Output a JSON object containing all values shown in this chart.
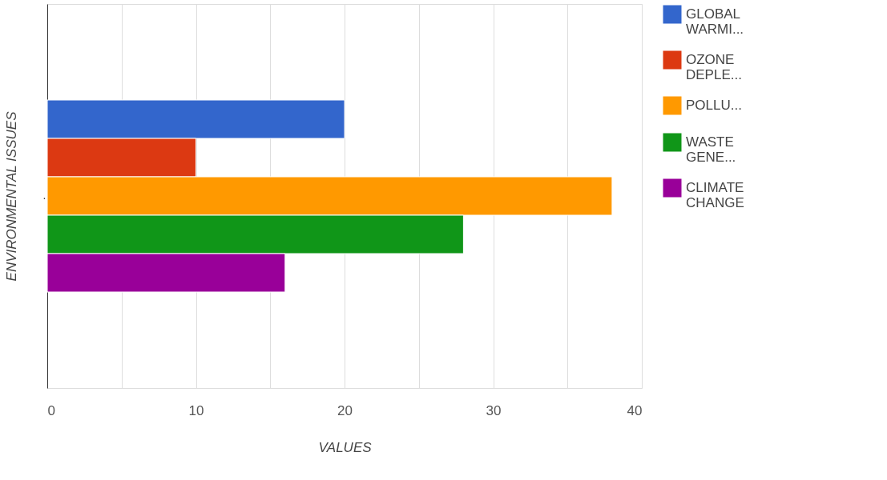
{
  "chart_data": {
    "type": "bar",
    "orientation": "horizontal",
    "categories": [
      "."
    ],
    "series": [
      {
        "name": "GLOBAL WARMI...",
        "color": "#3366cc",
        "values": [
          20
        ]
      },
      {
        "name": "OZONE DEPLE...",
        "color": "#dc3912",
        "values": [
          10
        ]
      },
      {
        "name": "POLLU...",
        "color": "#ff9900",
        "values": [
          38
        ]
      },
      {
        "name": "WASTE GENE...",
        "color": "#109618",
        "values": [
          28
        ]
      },
      {
        "name": "CLIMATE CHANGE",
        "color": "#990099",
        "values": [
          16
        ]
      }
    ],
    "xlabel": "VALUES",
    "ylabel": "ENVIRONMENTAL ISSUES",
    "xlim": [
      0,
      40
    ],
    "xticks": [
      0,
      {
        "value": 5,
        "label": null
      },
      10,
      {
        "value": 15,
        "label": null
      },
      20,
      {
        "value": 25,
        "label": null
      },
      30,
      {
        "value": 35,
        "label": null
      },
      40
    ],
    "grid": "x",
    "legend": "right"
  }
}
